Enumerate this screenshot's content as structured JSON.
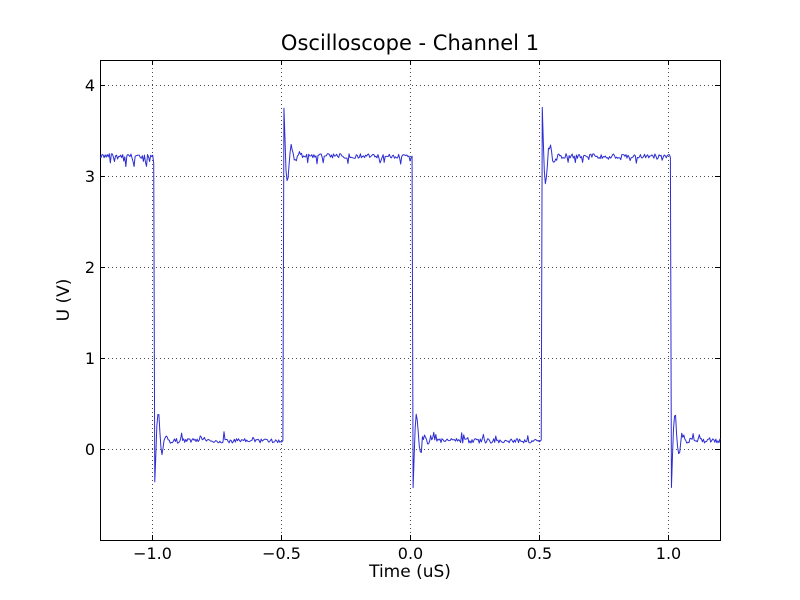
{
  "figure": {
    "background": "#ffffff",
    "spine_color": "#000000"
  },
  "chart_data": {
    "type": "line",
    "title": "Oscilloscope - Channel 1",
    "xlabel": "Time (uS)",
    "ylabel": "U (V)",
    "xlim": [
      -1.2,
      1.2
    ],
    "ylim": [
      -1.005,
      4.27
    ],
    "xticks": {
      "values": [
        -1.0,
        -0.5,
        0.0,
        0.5,
        1.0
      ],
      "labels": [
        "−1.0",
        "−0.5",
        "0.0",
        "0.5",
        "1.0"
      ]
    },
    "yticks": {
      "values": [
        0,
        1,
        2,
        3,
        4
      ],
      "labels": [
        "0",
        "1",
        "2",
        "3",
        "4"
      ]
    },
    "grid": {
      "visible": true,
      "style": "dotted",
      "color": "#4d4d4d"
    },
    "legend": null,
    "series": [
      {
        "name": "Channel 1",
        "color": "#2d2dd3",
        "line_width": 1,
        "waveform": "square-wave-with-ringing-and-noise",
        "params": {
          "high_level": 3.24,
          "low_level": 0.06,
          "period_us": 1.0,
          "duty_cycle": 0.5,
          "edges": [
            {
              "t": -0.99,
              "type": "fall"
            },
            {
              "t": -0.49,
              "type": "rise"
            },
            {
              "t": 0.01,
              "type": "fall"
            },
            {
              "t": 0.51,
              "type": "rise"
            },
            {
              "t": 1.01,
              "type": "fall"
            }
          ],
          "overshoot_peak": 3.83,
          "undershoot_min": -0.55,
          "ring_amplitude": 0.62,
          "ring_period_us": 0.032,
          "ring_decay_tau_us": 0.02,
          "noise_base": 0.05,
          "noise_spike_amp": 0.1,
          "noise_spike_prob": 0.18,
          "samples": 601,
          "seed": 42
        }
      }
    ]
  }
}
